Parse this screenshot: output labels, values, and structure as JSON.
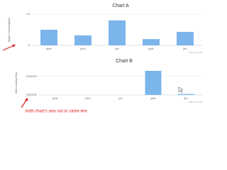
{
  "chart_data": [
    {
      "type": "bar",
      "title": "Chart A",
      "y_label": "Apple Consumption",
      "categories": [
        "jane",
        "john",
        "joe",
        "jack",
        "jim"
      ],
      "values": [
        5,
        3.2,
        8,
        2,
        4.3
      ],
      "color": "#7cb5ec",
      "ylim": [
        0,
        10
      ],
      "yticks": [
        0,
        10
      ],
      "grid": true,
      "credits": "This is a credit"
    },
    {
      "type": "bar",
      "title": "Chart B",
      "y_label": "Miles during Run",
      "categories": [
        "jane",
        "john",
        "joe",
        "jack",
        "jim"
      ],
      "values": [
        null,
        null,
        null,
        2300000,
        1050000
      ],
      "color": "#7cb5ec",
      "ylim": [
        1000000,
        2300000
      ],
      "yticks": [
        1000000,
        2000000
      ],
      "grid": true,
      "credits": "This is a credit"
    }
  ],
  "annotation": "both chart's axis not in same line"
}
